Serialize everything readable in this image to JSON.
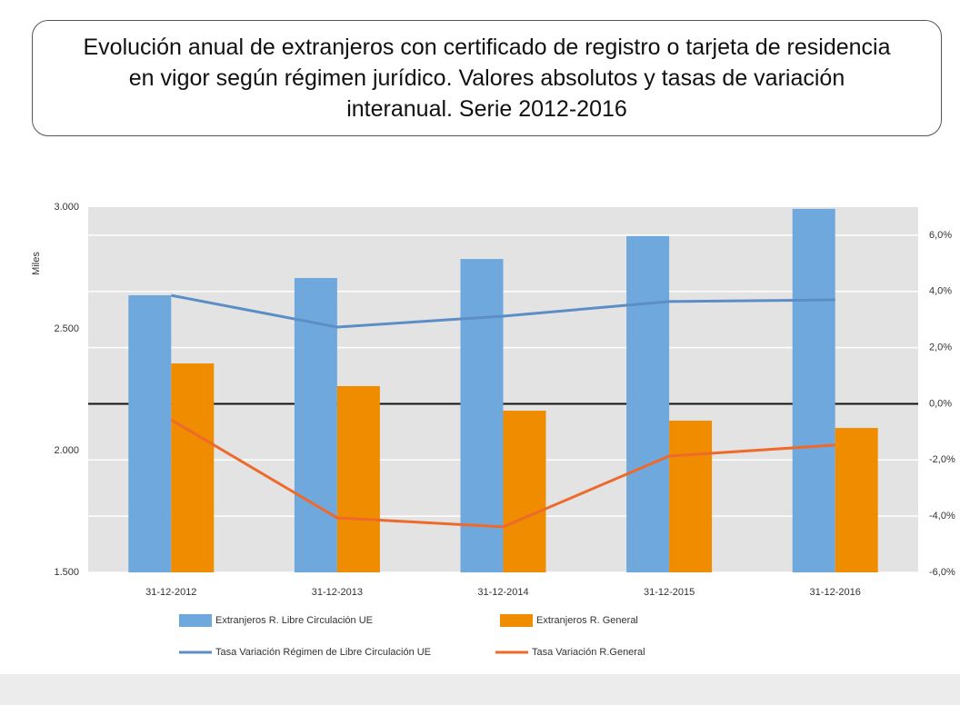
{
  "chart_data": {
    "type": "bar_line",
    "title": "Evolución anual de extranjeros con certificado de registro o tarjeta de residencia en vigor según régimen jurídico. Valores absolutos y tasas de variación interanual. Serie 2012-2016",
    "ylabel": "Miles",
    "categories": [
      "31-12-2012",
      "31-12-2013",
      "31-12-2014",
      "31-12-2015",
      "31-12-2016"
    ],
    "series": [
      {
        "name": "Extranjeros R. Libre Circulación UE",
        "type": "bar",
        "color": "#6fa8dc",
        "values": [
          2638,
          2709,
          2787,
          2881,
          2993
        ]
      },
      {
        "name": "Extranjeros R. General",
        "type": "bar",
        "color": "#f08c00",
        "values": [
          2358,
          2265,
          2164,
          2123,
          2093
        ]
      },
      {
        "name": "Tasa Variación Régimen de Libre Circulación UE",
        "type": "line",
        "axis": "y2",
        "color": "#5b8ec7",
        "values": [
          3.86,
          2.73,
          3.12,
          3.64,
          3.7
        ]
      },
      {
        "name": "Tasa Variación R.General",
        "type": "line",
        "axis": "y2",
        "color": "#ee6a2c",
        "values": [
          -0.57,
          -4.06,
          -4.38,
          -1.86,
          -1.47
        ]
      }
    ],
    "ylim": [
      1500,
      3000
    ],
    "yticks": [
      {
        "value": 1500,
        "label": "1.500"
      },
      {
        "value": 2000,
        "label": "2.000"
      },
      {
        "value": 2500,
        "label": "2.500"
      },
      {
        "value": 3000,
        "label": "3.000"
      }
    ],
    "y2lim": [
      -6,
      7
    ],
    "y2ticks": [
      {
        "value": -6,
        "label": "-6,0%"
      },
      {
        "value": -4,
        "label": "-4,0%"
      },
      {
        "value": -2,
        "label": "-2,0%"
      },
      {
        "value": 0,
        "label": "0,0%"
      },
      {
        "value": 2,
        "label": "2,0%"
      },
      {
        "value": 4,
        "label": "4,0%"
      },
      {
        "value": 6,
        "label": "6,0%"
      }
    ],
    "grid": true
  }
}
